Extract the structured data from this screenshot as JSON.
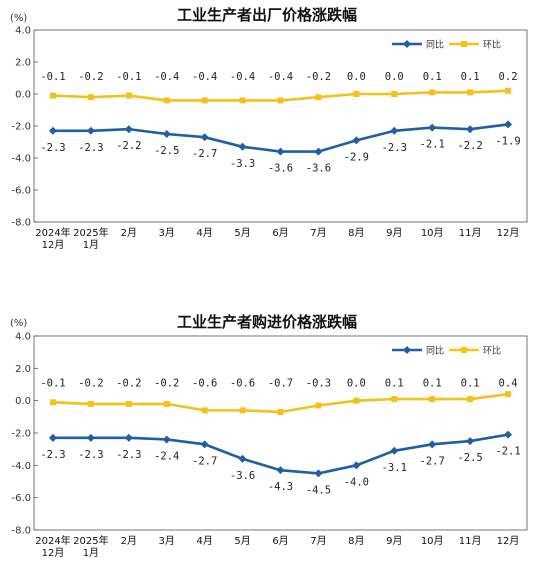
{
  "chart_data": [
    {
      "type": "line",
      "title": "工业生产者出厂价格涨跌幅",
      "unit": "(%)",
      "ylim": [
        -8.0,
        4.0
      ],
      "yticks": [
        "4.0",
        "2.0",
        "0.0",
        "-2.0",
        "-4.0",
        "-6.0",
        "-8.0"
      ],
      "categories": [
        [
          "2024年",
          "12月"
        ],
        [
          "2025年",
          "1月"
        ],
        [
          "2月"
        ],
        [
          "3月"
        ],
        [
          "4月"
        ],
        [
          "5月"
        ],
        [
          "6月"
        ],
        [
          "7月"
        ],
        [
          "8月"
        ],
        [
          "9月"
        ],
        [
          "10月"
        ],
        [
          "11月"
        ],
        [
          "12月"
        ]
      ],
      "legend_position": "top-right",
      "grid": false,
      "series": [
        {
          "name": "同比",
          "color": "#1f5fa8",
          "values": [
            -2.3,
            -2.3,
            -2.2,
            -2.5,
            -2.7,
            -3.3,
            -3.6,
            -3.6,
            -2.9,
            -2.3,
            -2.1,
            -2.2,
            -1.9
          ],
          "labels": [
            "-2.3",
            "-2.3",
            "-2.2",
            "-2.5",
            "-2.7",
            "-3.3",
            "-3.6",
            "-3.6",
            "-2.9",
            "-2.3",
            "-2.1",
            "-2.2",
            "-1.9"
          ]
        },
        {
          "name": "环比",
          "color": "#f2c21b",
          "values": [
            -0.1,
            -0.2,
            -0.1,
            -0.4,
            -0.4,
            -0.4,
            -0.4,
            -0.2,
            0.0,
            0.0,
            0.1,
            0.1,
            0.2
          ],
          "labels": [
            "-0.1",
            "-0.2",
            "-0.1",
            "-0.4",
            "-0.4",
            "-0.4",
            "-0.4",
            "-0.2",
            "0.0",
            "0.0",
            "0.1",
            "0.1",
            "0.2"
          ]
        }
      ]
    },
    {
      "type": "line",
      "title": "工业生产者购进价格涨跌幅",
      "unit": "(%)",
      "ylim": [
        -8.0,
        4.0
      ],
      "yticks": [
        "4.0",
        "2.0",
        "0.0",
        "-2.0",
        "-4.0",
        "-6.0",
        "-8.0"
      ],
      "categories": [
        [
          "2024年",
          "12月"
        ],
        [
          "2025年",
          "1月"
        ],
        [
          "2月"
        ],
        [
          "3月"
        ],
        [
          "4月"
        ],
        [
          "5月"
        ],
        [
          "6月"
        ],
        [
          "7月"
        ],
        [
          "8月"
        ],
        [
          "9月"
        ],
        [
          "10月"
        ],
        [
          "11月"
        ],
        [
          "12月"
        ]
      ],
      "legend_position": "top-right",
      "grid": false,
      "series": [
        {
          "name": "同比",
          "color": "#1f5fa8",
          "values": [
            -2.3,
            -2.3,
            -2.3,
            -2.4,
            -2.7,
            -3.6,
            -4.3,
            -4.5,
            -4.0,
            -3.1,
            -2.7,
            -2.5,
            -2.1
          ],
          "labels": [
            "-2.3",
            "-2.3",
            "-2.3",
            "-2.4",
            "-2.7",
            "-3.6",
            "-4.3",
            "-4.5",
            "-4.0",
            "-3.1",
            "-2.7",
            "-2.5",
            "-2.1"
          ]
        },
        {
          "name": "环比",
          "color": "#f2c21b",
          "values": [
            -0.1,
            -0.2,
            -0.2,
            -0.2,
            -0.6,
            -0.6,
            -0.7,
            -0.3,
            0.0,
            0.1,
            0.1,
            0.1,
            0.4
          ],
          "labels": [
            "-0.1",
            "-0.2",
            "-0.2",
            "-0.2",
            "-0.6",
            "-0.6",
            "-0.7",
            "-0.3",
            "0.0",
            "0.1",
            "0.1",
            "0.1",
            "0.4"
          ]
        }
      ]
    }
  ]
}
